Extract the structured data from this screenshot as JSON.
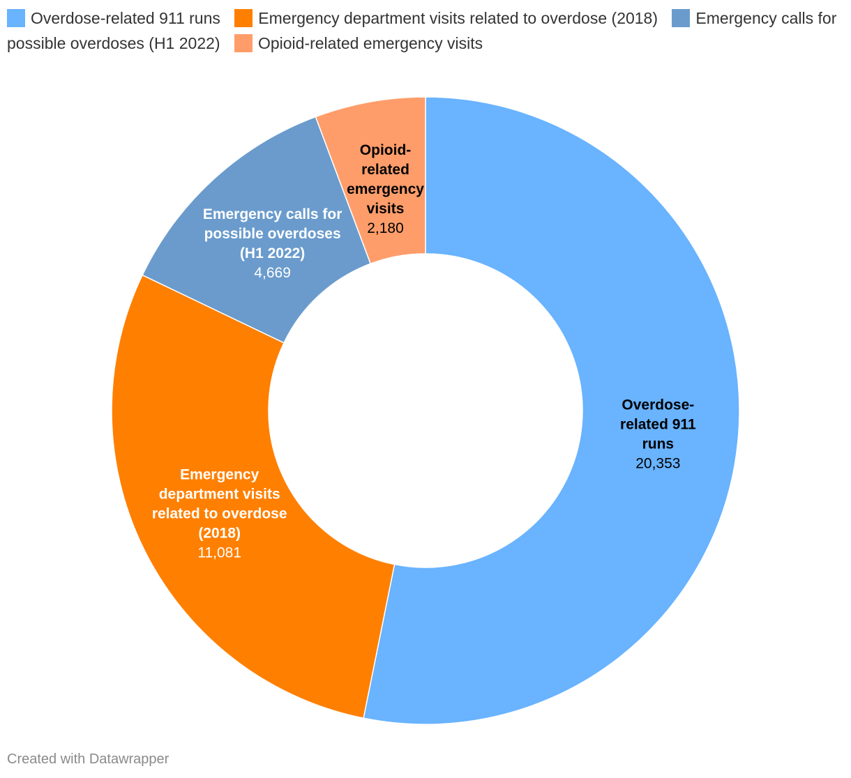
{
  "chart_data": {
    "type": "pie",
    "donut": true,
    "slices": [
      {
        "name": "Overdose-related 911 runs",
        "label_lines": [
          "Overdose-",
          "related 911",
          "runs"
        ],
        "value": 20353,
        "value_label": "20,353",
        "color": "#69b3ff",
        "text_color": "#000000"
      },
      {
        "name": "Emergency department visits related to overdose (2018)",
        "label_lines": [
          "Emergency",
          "department visits",
          "related to overdose",
          "(2018)"
        ],
        "value": 11081,
        "value_label": "11,081",
        "color": "#ff7f00",
        "text_color": "#ffffff"
      },
      {
        "name": "Emergency calls for possible overdoses (H1 2022)",
        "label_lines": [
          "Emergency calls for",
          "possible overdoses",
          "(H1 2022)"
        ],
        "value": 4669,
        "value_label": "4,669",
        "color": "#6a9bcc",
        "text_color": "#ffffff"
      },
      {
        "name": "Opioid-related emergency visits",
        "label_lines": [
          "Opioid-",
          "related",
          "emergency",
          "visits"
        ],
        "value": 2180,
        "value_label": "2,180",
        "color": "#ff9d6a",
        "text_color": "#000000"
      }
    ],
    "legend_position": "top-left"
  },
  "footer": {
    "credit": "Created with Datawrapper"
  }
}
